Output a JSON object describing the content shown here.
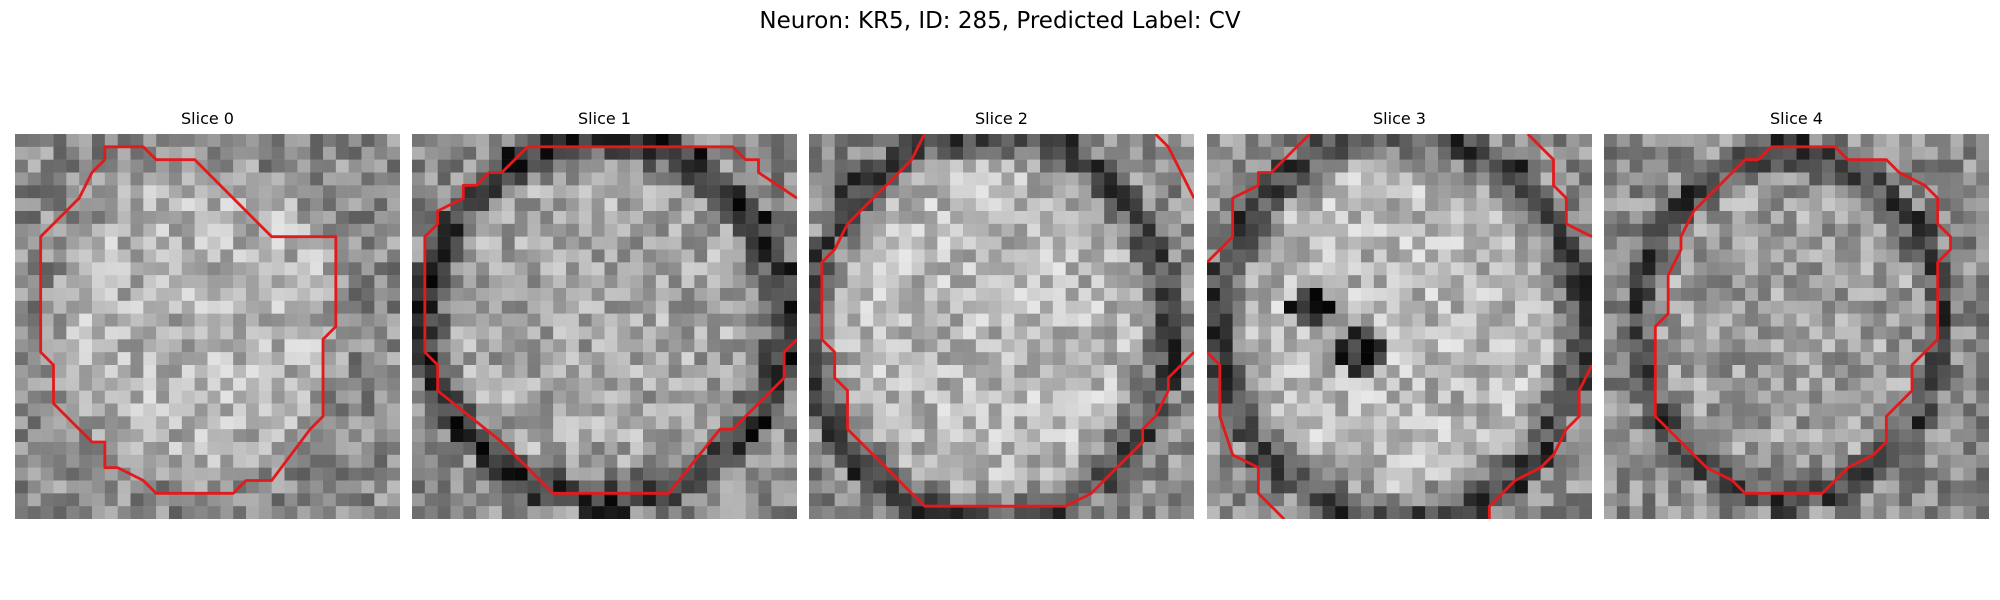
{
  "figure": {
    "title": "Neuron: KR5, ID: 285, Predicted Label: CV"
  },
  "panels": [
    {
      "title": "Slice 0"
    },
    {
      "title": "Slice 1"
    },
    {
      "title": "Slice 2"
    },
    {
      "title": "Slice 3"
    },
    {
      "title": "Slice 4"
    }
  ],
  "style": {
    "contour_color": "#e31a1c",
    "colormap": "gray"
  }
}
